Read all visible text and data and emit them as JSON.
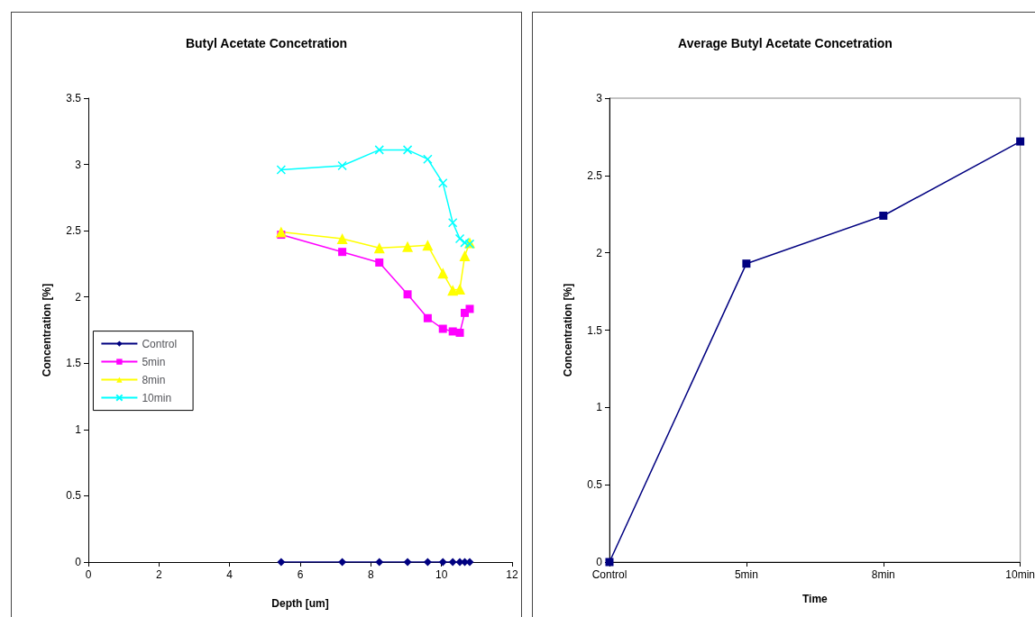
{
  "chart_data": [
    {
      "type": "line",
      "title": "Butyl Acetate Concetration",
      "xlabel": "Depth [um]",
      "ylabel": "Concentration [%]",
      "x": [
        5.46,
        7.19,
        8.24,
        9.04,
        9.61,
        10.04,
        10.32,
        10.52,
        10.66,
        10.8
      ],
      "xlim": [
        0,
        12
      ],
      "xticks": [
        0,
        2,
        4,
        6,
        8,
        10,
        12
      ],
      "ylim": [
        0,
        3.5
      ],
      "yticks": [
        0,
        0.5,
        1,
        1.5,
        2,
        2.5,
        3,
        3.5
      ],
      "legend": "left",
      "line_style": "solid",
      "series": [
        {
          "name": "Control",
          "color": "#000080",
          "marker": "diamond",
          "values": [
            0,
            0,
            0,
            0,
            0,
            0,
            0,
            0,
            0,
            0
          ]
        },
        {
          "name": "5min",
          "color": "#ff00ff",
          "marker": "square",
          "values": [
            2.47,
            2.34,
            2.26,
            2.02,
            1.84,
            1.76,
            1.74,
            1.73,
            1.88,
            1.91
          ]
        },
        {
          "name": "8min",
          "color": "#ffff00",
          "marker": "triangle",
          "values": [
            2.49,
            2.44,
            2.37,
            2.38,
            2.39,
            2.18,
            2.05,
            2.06,
            2.31,
            2.41
          ]
        },
        {
          "name": "10min",
          "color": "#00ffff",
          "marker": "cross",
          "values": [
            2.96,
            2.99,
            3.11,
            3.11,
            3.04,
            2.86,
            2.56,
            2.44,
            2.41,
            2.4
          ]
        }
      ]
    },
    {
      "type": "line",
      "title": "Average Butyl Acetate Concetration",
      "xlabel": "Time",
      "ylabel": "Concentration [%]",
      "categories": [
        "Control",
        "5min",
        "8min",
        "10min"
      ],
      "ylim": [
        0,
        3
      ],
      "yticks": [
        0,
        0.5,
        1,
        1.5,
        2,
        2.5,
        3
      ],
      "line_style": "solid",
      "series": [
        {
          "color": "#000080",
          "marker": "square",
          "values": [
            0,
            1.93,
            2.24,
            2.72
          ]
        }
      ]
    }
  ]
}
